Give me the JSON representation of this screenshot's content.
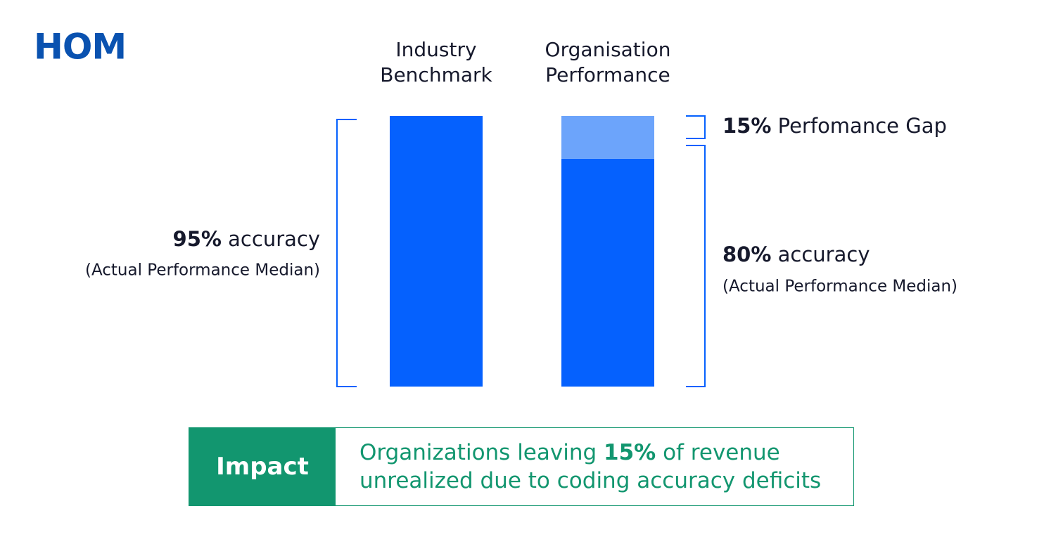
{
  "logo": "HOM",
  "chart_data": {
    "type": "stacked-bar",
    "categories": [
      "Industry Benchmark",
      "Organisation Performance"
    ],
    "series": [
      {
        "name": "accuracy",
        "color": "#0561fe",
        "values": [
          95,
          80
        ],
        "value_labels": [
          "95%",
          "80%"
        ],
        "note": "(Actual Performance Median)"
      },
      {
        "name": "Perfomance Gap",
        "color": "#6ca4fb",
        "values": [
          null,
          15
        ],
        "value_labels": [
          null,
          "15%"
        ]
      }
    ]
  },
  "impact": {
    "label": "Impact",
    "line1_before": "Organizations leaving ",
    "highlight": "15%",
    "line1_after": " of revenue",
    "line2": "unrealized due to coding accuracy deficits"
  }
}
